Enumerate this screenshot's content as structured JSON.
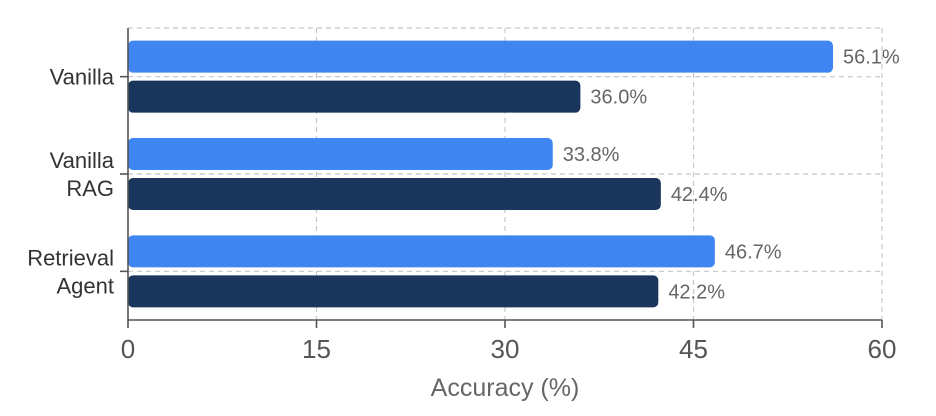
{
  "chart_data": {
    "type": "bar",
    "orientation": "horizontal",
    "categories": [
      [
        "Vanilla"
      ],
      [
        "Vanilla",
        "RAG"
      ],
      [
        "Retrieval",
        "Agent"
      ]
    ],
    "series": [
      {
        "color": "#3f86f2",
        "values": [
          56.1,
          33.8,
          46.7
        ],
        "labels": [
          "56.1%",
          "33.8%",
          "46.7%"
        ]
      },
      {
        "color": "#1b365c",
        "values": [
          36.0,
          42.4,
          42.2
        ],
        "labels": [
          "36.0%",
          "42.4%",
          "42.2%"
        ]
      }
    ],
    "xlabel": "Accuracy (%)",
    "ylabel": "",
    "xlim": [
      0,
      60
    ],
    "xticks": [
      "0",
      "15",
      "30",
      "45",
      "60"
    ],
    "grid": true
  }
}
